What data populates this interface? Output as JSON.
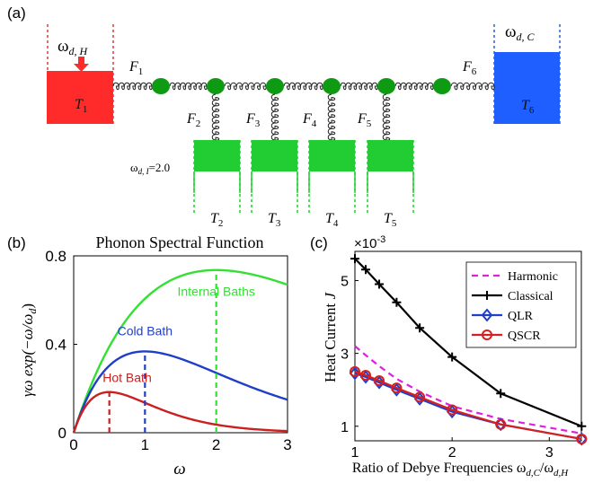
{
  "panel_a": {
    "label": "(a)",
    "hot_bath": {
      "freq_symbol": "ω",
      "freq_sub": "d, H",
      "temp": "T",
      "temp_sub": "1",
      "color": "#ff2a2a"
    },
    "cold_bath": {
      "freq_symbol": "ω",
      "freq_sub": "d, C",
      "temp": "T",
      "temp_sub": "6",
      "color": "#1f5fff"
    },
    "top_springs": [
      {
        "sym": "F",
        "sub": "1"
      },
      {
        "sym": "F",
        "sub": "6"
      }
    ],
    "internal_baths": [
      {
        "force": "F",
        "force_sub": "2",
        "temp": "T",
        "temp_sub": "2"
      },
      {
        "force": "F",
        "force_sub": "3",
        "temp": "T",
        "temp_sub": "3"
      },
      {
        "force": "F",
        "force_sub": "4",
        "temp": "T",
        "temp_sub": "4"
      },
      {
        "force": "F",
        "force_sub": "5",
        "temp": "T",
        "temp_sub": "5"
      }
    ],
    "internal_freq": {
      "sym": "ω",
      "sub": "d, I",
      "value": "=2.0"
    },
    "mass_color": "#0f9a14",
    "internal_bath_color": "#22cc33"
  },
  "panel_b": {
    "label": "(b)",
    "title": "Phonon Spectral Function",
    "ylabel": "γω exp(−ω/ω",
    "ylabel_sub": "d",
    "ylabel_tail": ")",
    "xlabel": "ω",
    "xticks": [
      "0",
      "1",
      "2",
      "3"
    ],
    "yticks": [
      "0",
      "0.4",
      "0.8"
    ],
    "annotations": [
      "Internal Baths",
      "Cold Bath",
      "Hot Bath"
    ]
  },
  "panel_c": {
    "label": "(c)",
    "ylabel": "Heat Current ",
    "ylabel_var": "J",
    "xlabel": "Ratio of Debye Frequencies ω",
    "xlabel_sub1": "d,C",
    "xlabel_mid": "/ω",
    "xlabel_sub2": "d,H",
    "scale": "×10",
    "scale_exp": "-3",
    "xticks": [
      "1",
      "2",
      "3"
    ],
    "yticks": [
      "1",
      "3",
      "5"
    ]
  },
  "chart_data": [
    {
      "type": "line",
      "title": "Phonon Spectral Function",
      "xlabel": "ω",
      "ylabel": "γω exp(−ω/ω_d)",
      "xlim": [
        0,
        3
      ],
      "ylim": [
        0,
        0.8
      ],
      "grid": false,
      "series": [
        {
          "name": "Internal Baths",
          "wd": 2.0,
          "color": "#33e033",
          "x": [
            0,
            0.25,
            0.5,
            0.75,
            1.0,
            1.25,
            1.5,
            1.75,
            2.0,
            2.25,
            2.5,
            2.75,
            3.0
          ],
          "values": [
            0,
            0.221,
            0.389,
            0.515,
            0.607,
            0.669,
            0.709,
            0.729,
            0.736,
            0.732,
            0.716,
            0.694,
            0.669
          ]
        },
        {
          "name": "Cold Bath",
          "wd": 1.0,
          "color": "#1f3fc8",
          "x": [
            0,
            0.25,
            0.5,
            0.75,
            1.0,
            1.25,
            1.5,
            1.75,
            2.0,
            2.25,
            2.5,
            2.75,
            3.0
          ],
          "values": [
            0,
            0.195,
            0.303,
            0.354,
            0.368,
            0.358,
            0.335,
            0.304,
            0.271,
            0.237,
            0.205,
            0.176,
            0.149
          ]
        },
        {
          "name": "Hot Bath",
          "wd": 0.5,
          "color": "#cc1f1f",
          "x": [
            0,
            0.25,
            0.5,
            0.75,
            1.0,
            1.25,
            1.5,
            1.75,
            2.0,
            2.25,
            2.5,
            2.75,
            3.0
          ],
          "values": [
            0,
            0.152,
            0.184,
            0.167,
            0.135,
            0.103,
            0.075,
            0.053,
            0.037,
            0.025,
            0.017,
            0.011,
            0.007
          ]
        }
      ],
      "vlines": [
        {
          "x": 0.5,
          "y": 0.184,
          "color": "#cc1f1f"
        },
        {
          "x": 1.0,
          "y": 0.368,
          "color": "#1f3fc8"
        },
        {
          "x": 2.0,
          "y": 0.736,
          "color": "#33e033"
        }
      ]
    },
    {
      "type": "line",
      "xlabel": "Ratio of Debye Frequencies ω_d,C/ω_d,H",
      "ylabel": "Heat Current J",
      "xlim": [
        1,
        3.33
      ],
      "ylim": [
        0.6,
        5.8
      ],
      "y_scale_factor": "×10^-3",
      "legend": "top-right",
      "x": [
        1.0,
        1.111,
        1.25,
        1.429,
        1.667,
        2.0,
        2.5,
        3.333
      ],
      "series": [
        {
          "name": "Harmonic",
          "color": "#e01ee0",
          "dash": true,
          "marker": "none",
          "values": [
            3.2,
            2.95,
            2.65,
            2.3,
            1.95,
            1.55,
            1.2,
            0.8
          ]
        },
        {
          "name": "Classical",
          "color": "#000000",
          "dash": false,
          "marker": "plus",
          "values": [
            5.6,
            5.3,
            4.9,
            4.4,
            3.7,
            2.9,
            1.9,
            1.0
          ]
        },
        {
          "name": "QLR",
          "color": "#1f3fc8",
          "dash": false,
          "marker": "diamond",
          "values": [
            2.45,
            2.35,
            2.2,
            2.0,
            1.75,
            1.4,
            1.05,
            0.65
          ]
        },
        {
          "name": "QSCR",
          "color": "#d81f1f",
          "dash": false,
          "marker": "circle",
          "values": [
            2.5,
            2.4,
            2.25,
            2.05,
            1.8,
            1.45,
            1.05,
            0.65
          ]
        }
      ]
    }
  ]
}
